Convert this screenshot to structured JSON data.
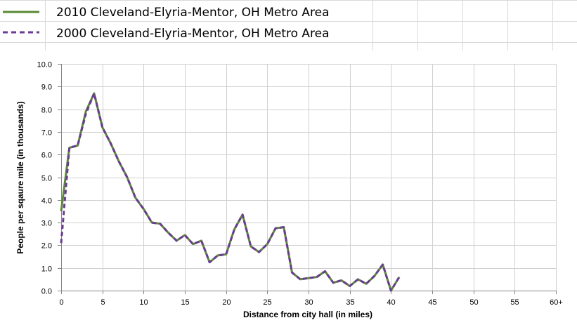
{
  "legend": {
    "items": [
      {
        "label": "2010 Cleveland-Elyria-Mentor, OH Metro Area",
        "color": "#5a8a34",
        "style": "solid"
      },
      {
        "label": "2000 Cleveland-Elyria-Mentor, OH Metro Area",
        "color": "#6a3a96",
        "style": "dashed"
      }
    ]
  },
  "chart_data": {
    "type": "line",
    "title": "",
    "xlabel": "Distance from city hall (in miles)",
    "ylabel": "People per sqaure mile (in thousands)",
    "xlim": [
      0,
      60
    ],
    "ylim": [
      0,
      10
    ],
    "x_ticks": [
      "0",
      "5",
      "10",
      "15",
      "20",
      "25",
      "30",
      "35",
      "40",
      "45",
      "50",
      "55",
      "60+"
    ],
    "y_ticks": [
      "0.0",
      "1.0",
      "2.0",
      "3.0",
      "4.0",
      "5.0",
      "6.0",
      "7.0",
      "8.0",
      "9.0",
      "10.0"
    ],
    "grid": true,
    "legend_position": "top-left",
    "x": [
      0,
      1,
      2,
      3,
      4,
      5,
      6,
      7,
      8,
      9,
      10,
      11,
      12,
      13,
      14,
      15,
      16,
      17,
      18,
      19,
      20,
      21,
      22,
      23,
      24,
      25,
      26,
      27,
      28,
      29,
      30,
      31,
      32,
      33,
      34,
      35,
      36,
      37,
      38,
      39,
      40,
      41
    ],
    "series": [
      {
        "name": "2010 Cleveland-Elyria-Mentor, OH Metro Area",
        "color": "#5a8a34",
        "dash": "solid",
        "values": [
          3.5,
          6.3,
          6.4,
          7.9,
          8.7,
          7.2,
          6.5,
          5.7,
          5.0,
          4.1,
          3.6,
          3.0,
          2.95,
          2.55,
          2.2,
          2.45,
          2.05,
          2.2,
          1.25,
          1.55,
          1.6,
          2.7,
          3.35,
          1.95,
          1.7,
          2.05,
          2.75,
          2.8,
          0.8,
          0.5,
          0.55,
          0.6,
          0.85,
          0.35,
          0.45,
          0.2,
          0.5,
          0.3,
          0.65,
          1.15,
          0.0,
          0.6
        ]
      },
      {
        "name": "2000 Cleveland-Elyria-Mentor, OH Metro Area",
        "color": "#6a3a96",
        "dash": "dashed",
        "values": [
          2.1,
          6.3,
          6.4,
          7.8,
          8.7,
          7.2,
          6.5,
          5.7,
          5.0,
          4.1,
          3.6,
          3.0,
          2.95,
          2.55,
          2.2,
          2.45,
          2.05,
          2.2,
          1.25,
          1.55,
          1.6,
          2.7,
          3.35,
          1.95,
          1.7,
          2.05,
          2.75,
          2.8,
          0.8,
          0.5,
          0.55,
          0.6,
          0.85,
          0.35,
          0.45,
          0.2,
          0.5,
          0.3,
          0.65,
          1.15,
          0.0,
          0.6
        ]
      }
    ]
  }
}
